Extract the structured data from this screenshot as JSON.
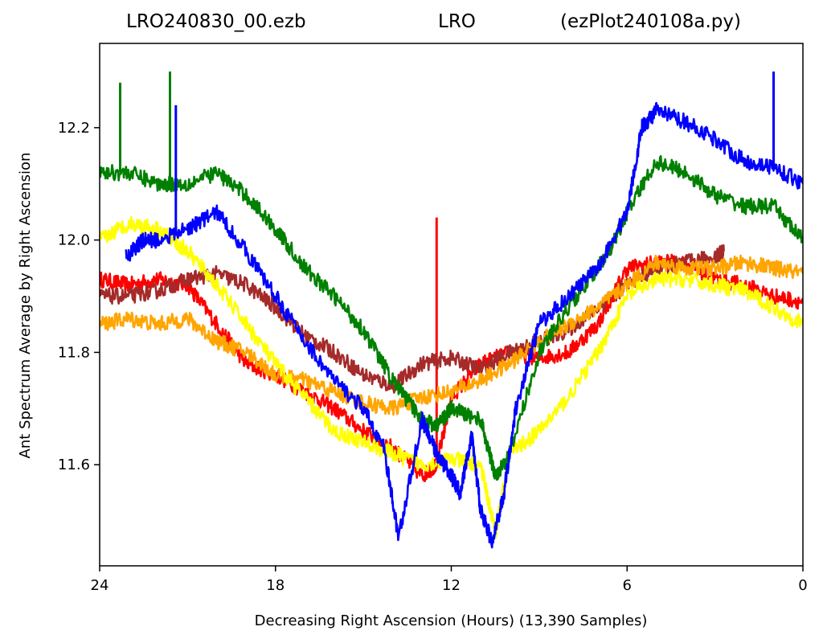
{
  "title": {
    "left": "LRO240830_00.ezb",
    "center": "LRO",
    "right": "(ezPlot240108a.py)"
  },
  "chart_data": {
    "type": "line",
    "xlabel": "Decreasing Right Ascension (Hours) (13,390 Samples)",
    "ylabel": "Ant Spectrum Average by Right Ascension",
    "xlim": [
      24,
      0
    ],
    "x_reversed": true,
    "ylim": [
      11.42,
      12.35
    ],
    "xticks": [
      24,
      18,
      12,
      6,
      0
    ],
    "yticks": [
      11.6,
      11.8,
      12.0,
      12.2
    ],
    "grid": false,
    "series": [
      {
        "color": "#ff0000",
        "x": [
          24,
          23,
          22,
          21,
          20,
          19,
          18,
          17,
          16,
          15,
          14,
          13,
          12.5,
          12,
          11,
          10,
          9,
          8,
          7,
          6,
          5,
          4,
          3,
          2,
          1,
          0
        ],
        "y": [
          11.93,
          11.92,
          11.93,
          11.92,
          11.85,
          11.78,
          11.76,
          11.73,
          11.7,
          11.66,
          11.63,
          11.58,
          11.6,
          11.72,
          11.78,
          11.8,
          11.79,
          11.8,
          11.85,
          11.95,
          11.96,
          11.96,
          11.93,
          11.92,
          11.9,
          11.89
        ],
        "spikes": [
          {
            "x": 12.5,
            "y": 12.04
          }
        ]
      },
      {
        "color": "#a52a2a",
        "x": [
          24,
          23,
          22,
          21,
          20,
          19,
          18,
          17,
          16,
          15,
          14,
          13,
          12,
          11,
          10,
          9,
          8,
          7,
          6,
          5,
          4,
          3,
          2.7
        ],
        "y": [
          11.9,
          11.9,
          11.91,
          11.93,
          11.94,
          11.92,
          11.88,
          11.83,
          11.8,
          11.76,
          11.74,
          11.78,
          11.79,
          11.77,
          11.8,
          11.82,
          11.84,
          11.88,
          11.92,
          11.95,
          11.96,
          11.97,
          11.98
        ]
      },
      {
        "color": "#ffa500",
        "x": [
          24,
          23,
          22,
          21,
          20,
          19,
          18,
          17,
          16,
          15,
          14,
          13,
          12,
          11,
          10,
          9,
          8,
          7,
          6,
          5,
          4,
          3,
          2,
          1,
          0
        ],
        "y": [
          11.85,
          11.86,
          11.85,
          11.86,
          11.82,
          11.8,
          11.76,
          11.75,
          11.73,
          11.71,
          11.7,
          11.72,
          11.73,
          11.75,
          11.78,
          11.82,
          11.85,
          11.88,
          11.92,
          11.96,
          11.95,
          11.95,
          11.96,
          11.95,
          11.94
        ]
      },
      {
        "color": "#ffff00",
        "x": [
          24,
          23,
          22,
          21,
          20,
          19,
          18,
          17,
          16,
          15,
          14,
          13,
          12,
          11,
          10.5,
          10,
          9,
          8,
          7,
          6,
          5,
          4,
          3,
          2,
          1,
          0
        ],
        "y": [
          12.0,
          12.03,
          12.02,
          11.98,
          11.92,
          11.85,
          11.78,
          11.72,
          11.66,
          11.64,
          11.62,
          11.6,
          11.61,
          11.6,
          11.48,
          11.62,
          11.66,
          11.72,
          11.8,
          11.9,
          11.93,
          11.93,
          11.92,
          11.91,
          11.88,
          11.85
        ]
      },
      {
        "color": "#008000",
        "x": [
          24,
          23,
          22,
          21,
          20,
          19,
          18,
          17,
          16,
          15,
          14,
          13,
          12.5,
          12,
          11,
          10.5,
          10,
          9,
          8,
          7,
          6.5,
          6,
          5,
          4,
          3,
          2,
          1,
          0
        ],
        "y": [
          12.12,
          12.12,
          12.1,
          12.1,
          12.12,
          12.08,
          12.02,
          11.95,
          11.9,
          11.84,
          11.75,
          11.68,
          11.67,
          11.7,
          11.68,
          11.58,
          11.62,
          11.8,
          11.88,
          11.95,
          11.99,
          12.05,
          12.14,
          12.12,
          12.08,
          12.06,
          12.06,
          12.0
        ],
        "spikes": [
          {
            "x": 23.3,
            "y": 12.28
          },
          {
            "x": 21.6,
            "y": 12.3
          }
        ]
      },
      {
        "color": "#0000ff",
        "x": [
          23.1,
          22.5,
          22,
          21,
          20,
          19,
          18,
          17,
          16,
          15,
          14.3,
          13.8,
          13,
          12.5,
          12,
          11.7,
          11.3,
          11,
          10.6,
          10.2,
          9.8,
          9,
          8,
          7,
          6,
          5.5,
          5,
          4,
          3,
          2,
          1,
          0
        ],
        "y": [
          11.97,
          12.0,
          12.0,
          12.02,
          12.05,
          11.98,
          11.9,
          11.82,
          11.75,
          11.7,
          11.63,
          11.47,
          11.68,
          11.62,
          11.58,
          11.55,
          11.65,
          11.52,
          11.46,
          11.55,
          11.7,
          11.85,
          11.9,
          11.95,
          12.05,
          12.2,
          12.23,
          12.21,
          12.18,
          12.14,
          12.13,
          12.1
        ],
        "spikes": [
          {
            "x": 21.4,
            "y": 12.24
          },
          {
            "x": 1.0,
            "y": 12.3
          }
        ]
      }
    ]
  }
}
